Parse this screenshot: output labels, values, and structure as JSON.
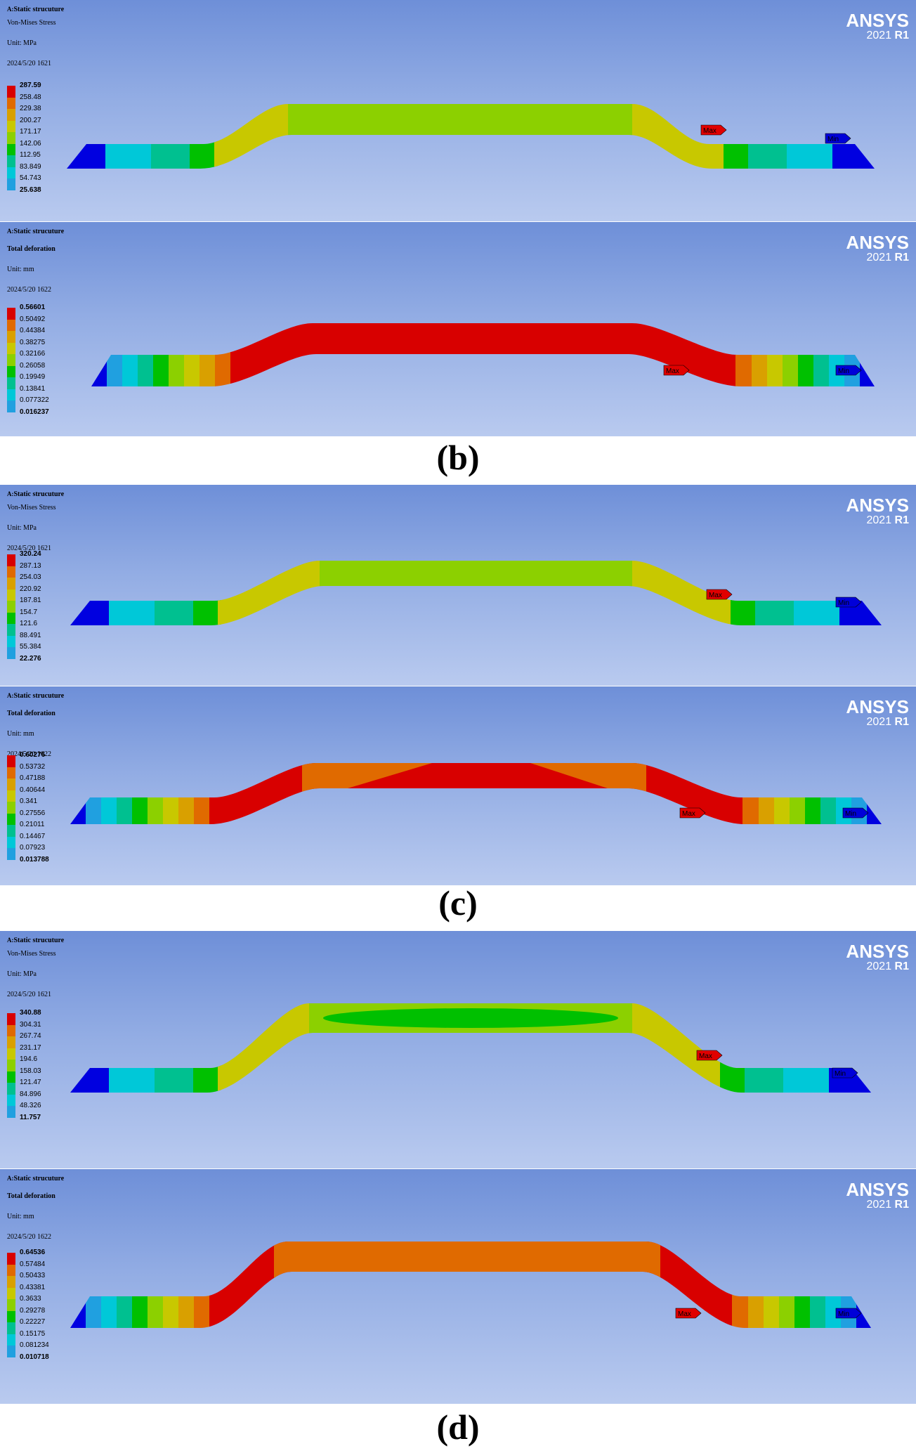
{
  "brand": {
    "name": "ANSYS",
    "version_year": "2021",
    "version_rel": "R1"
  },
  "colors": {
    "levels": [
      "#d80000",
      "#e06a00",
      "#d9a000",
      "#c8c800",
      "#8cd000",
      "#00c000",
      "#00c090",
      "#00c8d8",
      "#20a0e0",
      "#0000e0"
    ]
  },
  "panels": [
    {
      "title_prefix": "A:",
      "title": "Static strucuture",
      "subtitle": "Von-Mises Stress",
      "unit": "Unit:  MPa",
      "date": "2024/5/20 1621",
      "values": [
        "287.59",
        "258.48",
        "229.38",
        "200.27",
        "171.17",
        "142.06",
        "112.95",
        "83.849",
        "54.743",
        "25.638"
      ],
      "max_label": "Max",
      "min_label": "Min",
      "kind": "stress"
    },
    {
      "title_prefix": "A:",
      "title": "Static strucuture",
      "subtitle": "Total deforation",
      "unit": "Unit:  mm",
      "date": "2024/5/20 1622",
      "values": [
        "0.56601",
        "0.50492",
        "0.44384",
        "0.38275",
        "0.32166",
        "0.26058",
        "0.19949",
        "0.13841",
        "0.077322",
        "0.016237"
      ],
      "max_label": "Max",
      "min_label": "Min",
      "kind": "deform"
    },
    {
      "title_prefix": "A:",
      "title": "Static strucuture",
      "subtitle": "Von-Mises Stress",
      "unit": "Unit:  MPa",
      "date": "2024/5/20 1621",
      "values": [
        "320.24",
        "287.13",
        "254.03",
        "220.92",
        "187.81",
        "154.7",
        "121.6",
        "88.491",
        "55.384",
        "22.276"
      ],
      "max_label": "Max",
      "min_label": "Min",
      "kind": "stress"
    },
    {
      "title_prefix": "A:",
      "title": "Static strucuture",
      "subtitle": "Total deforation",
      "unit": "Unit:  mm",
      "date": "2024/5/20 1622",
      "values": [
        "0.60276",
        "0.53732",
        "0.47188",
        "0.40644",
        "0.341",
        "0.27556",
        "0.21011",
        "0.14467",
        "0.07923",
        "0.013788"
      ],
      "max_label": "Max",
      "min_label": "Min",
      "kind": "deform"
    },
    {
      "title_prefix": "A:",
      "title": "Static strucuture",
      "subtitle": "Von-Mises Stress",
      "unit": "Unit:  MPa",
      "date": "2024/5/20 1621",
      "values": [
        "340.88",
        "304.31",
        "267.74",
        "231.17",
        "194.6",
        "158.03",
        "121.47",
        "84.896",
        "48.326",
        "11.757"
      ],
      "max_label": "Max",
      "min_label": "Min",
      "kind": "stress"
    },
    {
      "title_prefix": "A:",
      "title": "Static strucuture",
      "subtitle": "Total deforation",
      "unit": "Unit:  mm",
      "date": "2024/5/20 1622",
      "values": [
        "0.64536",
        "0.57484",
        "0.50433",
        "0.43381",
        "0.3633",
        "0.29278",
        "0.22227",
        "0.15175",
        "0.081234",
        "0.010718"
      ],
      "max_label": "Max",
      "min_label": "Min",
      "kind": "deform"
    }
  ],
  "captions": [
    "(b)",
    "(c)",
    "(d)"
  ]
}
